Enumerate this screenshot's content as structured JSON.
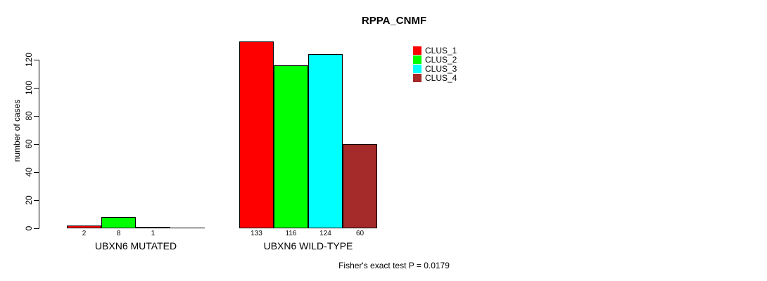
{
  "chart_data": {
    "type": "bar",
    "title": "RPPA_CNMF",
    "ylabel": "number of cases",
    "xlabel": "",
    "categories": [
      "UBXN6 MUTATED",
      "UBXN6 WILD-TYPE"
    ],
    "series": [
      {
        "name": "CLUS_1",
        "color": "#FF0000",
        "values": [
          2,
          133
        ]
      },
      {
        "name": "CLUS_2",
        "color": "#00FF00",
        "values": [
          8,
          116
        ]
      },
      {
        "name": "CLUS_3",
        "color": "#00FFFF",
        "values": [
          1,
          124
        ]
      },
      {
        "name": "CLUS_4",
        "color": "#A52A2A",
        "values": [
          0,
          60
        ]
      }
    ],
    "bar_value_labels": [
      [
        "2",
        "8",
        "1",
        ""
      ],
      [
        "133",
        "116",
        "124",
        "60"
      ]
    ],
    "yticks": [
      0,
      20,
      40,
      60,
      80,
      100,
      120
    ],
    "ylim": [
      0,
      133
    ],
    "grid": false,
    "legend_position": "top-right",
    "legend_entries": [
      "CLUS_1",
      "CLUS_2",
      "CLUS_3",
      "CLUS_4"
    ],
    "annotation": "Fisher's exact test P = 0.0179"
  }
}
